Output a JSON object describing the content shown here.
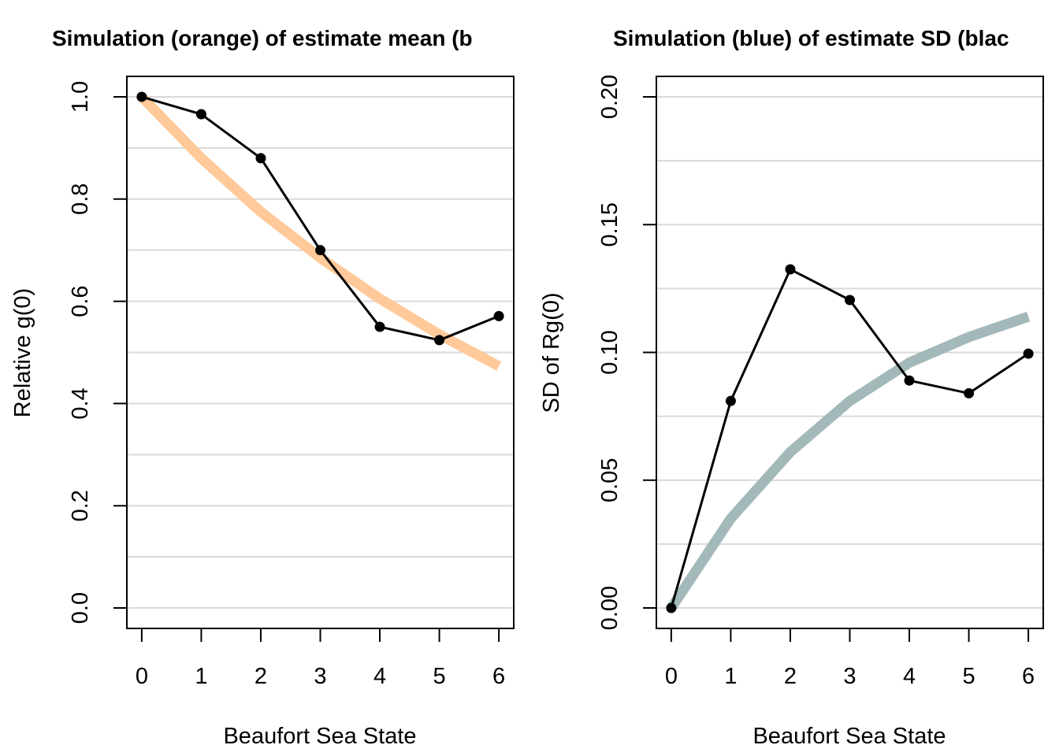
{
  "chart_data": [
    {
      "type": "line",
      "title": "Simulation (orange) of estimate mean (b",
      "xlabel": "Beaufort Sea State",
      "ylabel": "Relative g(0)",
      "x": [
        0,
        1,
        2,
        3,
        4,
        5,
        6
      ],
      "xlim": [
        -0.25,
        6.25
      ],
      "ylim": [
        -0.04,
        1.04
      ],
      "yticks": [
        "0.0",
        "0.2",
        "0.4",
        "0.6",
        "0.8",
        "1.0"
      ],
      "ytick_values": [
        0,
        0.2,
        0.4,
        0.6,
        0.8,
        1.0
      ],
      "grid_values": [
        0,
        0.1,
        0.2,
        0.3,
        0.4,
        0.5,
        0.6,
        0.7,
        0.8,
        0.9,
        1.0
      ],
      "grid": true,
      "series": [
        {
          "values": [
            1.0,
            0.88,
            0.775,
            0.685,
            0.605,
            0.535,
            0.473
          ],
          "color": "#ffc999",
          "style": "thick"
        },
        {
          "values": [
            1.0,
            0.966,
            0.88,
            0.7,
            0.55,
            0.524,
            0.571
          ],
          "color": "#000000",
          "style": "line-points"
        }
      ]
    },
    {
      "type": "line",
      "title": "Simulation (blue) of estimate SD (blac",
      "xlabel": "Beaufort Sea State",
      "ylabel": "SD of Rg(0)",
      "x": [
        0,
        1,
        2,
        3,
        4,
        5,
        6
      ],
      "xlim": [
        -0.25,
        6.25
      ],
      "ylim": [
        -0.008,
        0.208
      ],
      "yticks": [
        "0.00",
        "0.05",
        "0.10",
        "0.15",
        "0.20"
      ],
      "ytick_values": [
        0,
        0.05,
        0.1,
        0.15,
        0.2
      ],
      "grid_values": [
        0,
        0.025,
        0.05,
        0.075,
        0.1,
        0.125,
        0.15,
        0.175,
        0.2
      ],
      "grid": true,
      "series": [
        {
          "values": [
            0.0,
            0.035,
            0.061,
            0.081,
            0.096,
            0.106,
            0.114
          ],
          "color": "#a3b8b9",
          "style": "thick"
        },
        {
          "values": [
            0.0,
            0.081,
            0.1325,
            0.1205,
            0.089,
            0.084,
            0.0995
          ],
          "color": "#000000",
          "style": "line-points"
        }
      ]
    }
  ]
}
